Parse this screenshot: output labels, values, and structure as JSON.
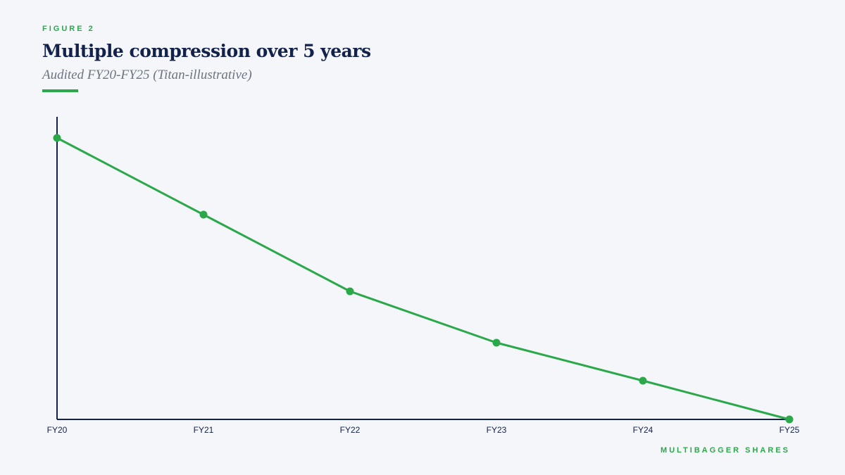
{
  "header": {
    "figure_label": "FIGURE 2",
    "title": "Multiple compression over 5 years",
    "subtitle": "Audited FY20-FY25 (Titan-illustrative)"
  },
  "footer": {
    "brand": "MULTIBAGGER SHARES"
  },
  "colors": {
    "accent": "#2aa84a",
    "axis": "#12224a",
    "background": "#f4f6f9"
  },
  "chart_data": {
    "type": "line",
    "title": "Multiple compression over 5 years",
    "subtitle": "Audited FY20-FY25 (Titan-illustrative)",
    "categories": [
      "FY20",
      "FY21",
      "FY22",
      "FY23",
      "FY24",
      "FY25"
    ],
    "series": [
      {
        "values": [
          100,
          72.75,
          45.5,
          27.25,
          13.75,
          0
        ]
      }
    ],
    "ylim": [
      0,
      100
    ],
    "y_ticks_shown": false,
    "grid": false,
    "legend": "none",
    "xlabel": "",
    "ylabel": ""
  }
}
